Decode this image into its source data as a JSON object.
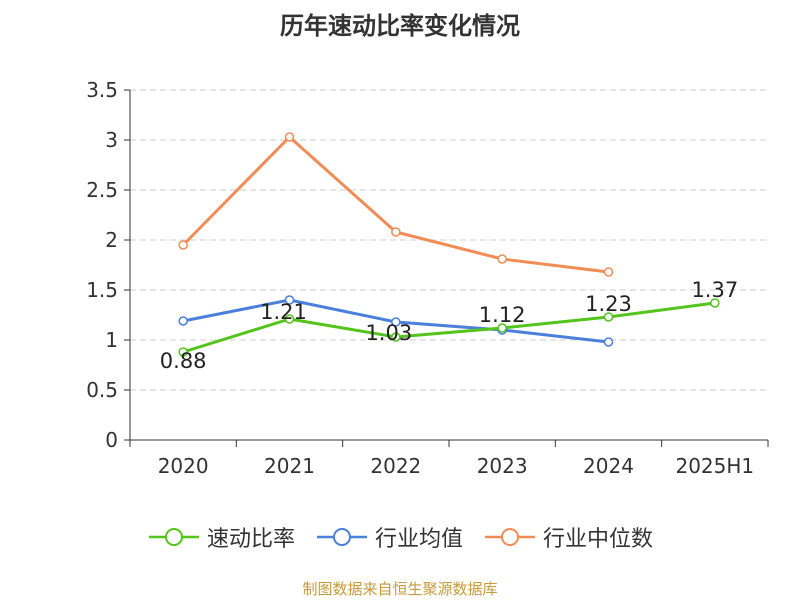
{
  "chart_data": {
    "type": "line",
    "title": "历年速动比率变化情况",
    "categories": [
      "2020",
      "2021",
      "2022",
      "2023",
      "2024",
      "2025H1"
    ],
    "ylim": [
      0,
      3.5
    ],
    "yticks": [
      "0",
      "0.5",
      "1",
      "1.5",
      "2",
      "2.5",
      "3",
      "3.5"
    ],
    "grid": true,
    "legend_position": "bottom",
    "series": [
      {
        "name": "速动比率",
        "color": "#52c41a",
        "values": [
          0.88,
          1.21,
          1.03,
          1.12,
          1.23,
          1.37
        ],
        "labels": [
          "0.88",
          "1.21",
          "1.03",
          "1.12",
          "1.23",
          "1.37"
        ]
      },
      {
        "name": "行业均值",
        "color": "#4a7fdb",
        "values": [
          1.19,
          1.4,
          1.18,
          1.1,
          0.98,
          null
        ]
      },
      {
        "name": "行业中位数",
        "color": "#f28c55",
        "values": [
          1.95,
          3.03,
          2.08,
          1.81,
          1.68,
          null
        ]
      }
    ]
  },
  "footer": {
    "source": "制图数据来自恒生聚源数据库"
  }
}
